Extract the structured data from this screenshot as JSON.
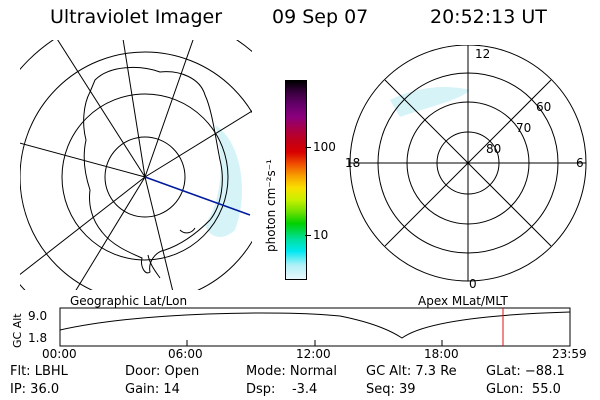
{
  "header": {
    "title": "Ultraviolet Imager",
    "date": "09 Sep 07",
    "time": "20:52:13 UT"
  },
  "colorbar": {
    "label": "photon cm⁻²s⁻¹",
    "ticks": [
      "100",
      "10"
    ],
    "colors": [
      "#000000",
      "#3a0040",
      "#66006a",
      "#8a007e",
      "#a8004a",
      "#c0001a",
      "#d80000",
      "#f05000",
      "#f8a000",
      "#f8e000",
      "#c8f000",
      "#70e000",
      "#00d000",
      "#00e0a0",
      "#00e8f0",
      "#b0f0f8",
      "#e8f8fc"
    ]
  },
  "geo_map": {
    "label": "Geographic Lat/Lon"
  },
  "apex_map": {
    "label": "Apex MLat/MLT",
    "mlt_labels": {
      "top": "12",
      "left": "18",
      "right": "6",
      "bottom": "0"
    },
    "lat_labels": [
      "60",
      "70",
      "80"
    ]
  },
  "altitude_plot": {
    "ylabel": "GC Alt",
    "yticks": [
      "9.0",
      "1.8"
    ],
    "xticks": [
      "00:00",
      "06:00",
      "12:00",
      "18:00",
      "23:59"
    ]
  },
  "status": {
    "flt": "Flt: LBHL",
    "ip": "IP: 36.0",
    "door": "Door: Open",
    "gain": "Gain: 14",
    "mode": "Mode: Normal",
    "dsp": "Dsp:    -3.4",
    "gc_alt": "GC Alt: 7.3 Re",
    "seq": "Seq: 39",
    "glat": "GLat: −88.1",
    "glon": "GLon:  55.0"
  }
}
